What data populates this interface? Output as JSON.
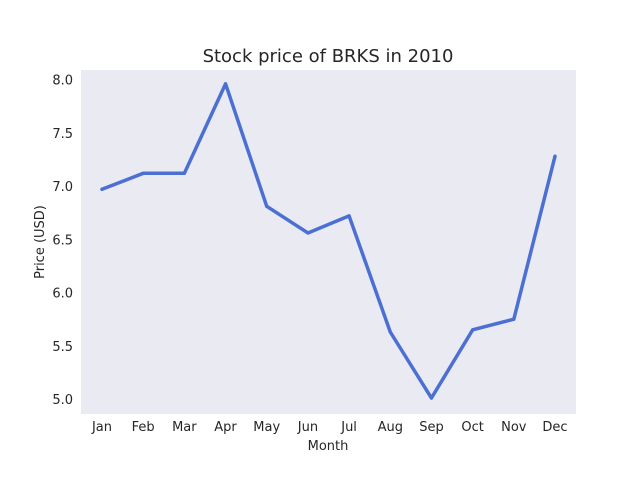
{
  "chart_data": {
    "type": "line",
    "title": "Stock price of BRKS in 2010",
    "xlabel": "Month",
    "ylabel": "Price (USD)",
    "categories": [
      "Jan",
      "Feb",
      "Mar",
      "Apr",
      "May",
      "Jun",
      "Jul",
      "Aug",
      "Sep",
      "Oct",
      "Nov",
      "Dec"
    ],
    "series": [
      {
        "values": [
          6.97,
          7.12,
          7.12,
          7.96,
          6.81,
          6.56,
          6.72,
          5.63,
          5.01,
          5.65,
          5.75,
          7.28
        ],
        "color": "#4c6fd4"
      }
    ],
    "ylim": [
      4.86,
      8.09
    ],
    "yticks": [
      "5.0",
      "5.5",
      "6.0",
      "6.5",
      "7.0",
      "7.5",
      "8.0"
    ],
    "grid": false,
    "background": "#eaeaf2"
  }
}
